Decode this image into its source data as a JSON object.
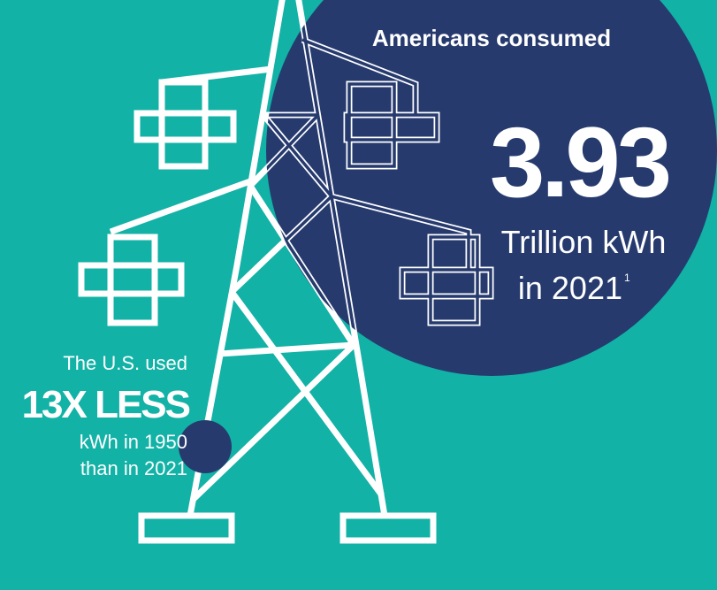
{
  "headline": {
    "lead": "Americans consumed",
    "figure": "3.93",
    "unit": "Trillion kWh",
    "year": "in 2021",
    "footnote": "1"
  },
  "comparison": {
    "lead": "The U.S. used",
    "figure": "13X LESS",
    "line1": "kWh in 1950",
    "line2": "than in 2021"
  }
}
